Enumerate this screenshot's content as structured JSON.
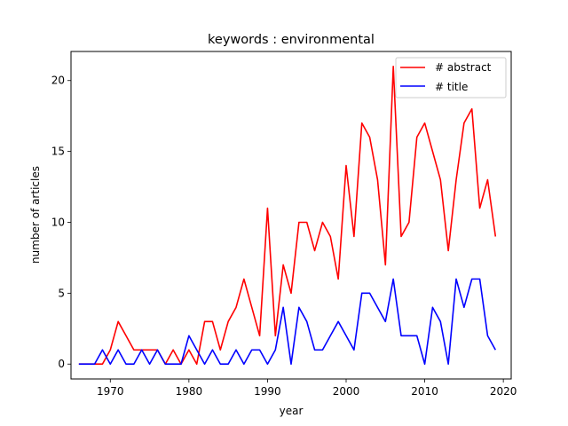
{
  "chart_data": {
    "type": "line",
    "title": "keywords : environmental",
    "xlabel": "year",
    "ylabel": "number of articles",
    "xlim": [
      1965,
      2021
    ],
    "ylim": [
      -1.05,
      22.05
    ],
    "xticks": [
      1970,
      1980,
      1990,
      2000,
      2010,
      2020
    ],
    "yticks": [
      0,
      5,
      10,
      15,
      20
    ],
    "grid": false,
    "legend_position": "top-right",
    "x": [
      1966,
      1967,
      1968,
      1969,
      1970,
      1971,
      1972,
      1973,
      1974,
      1975,
      1976,
      1977,
      1978,
      1979,
      1980,
      1981,
      1982,
      1983,
      1984,
      1985,
      1986,
      1987,
      1988,
      1989,
      1990,
      1991,
      1992,
      1993,
      1994,
      1995,
      1996,
      1997,
      1998,
      1999,
      2000,
      2001,
      2002,
      2003,
      2004,
      2005,
      2006,
      2007,
      2008,
      2009,
      2010,
      2011,
      2012,
      2013,
      2014,
      2015,
      2016,
      2017,
      2018,
      2019
    ],
    "series": [
      {
        "name": "# abstract",
        "color": "#ff0000",
        "values": [
          0,
          0,
          0,
          0,
          1,
          3,
          2,
          1,
          1,
          1,
          1,
          0,
          1,
          0,
          1,
          0,
          3,
          3,
          1,
          3,
          4,
          6,
          4,
          2,
          11,
          2,
          7,
          5,
          10,
          10,
          8,
          10,
          9,
          6,
          14,
          9,
          17,
          16,
          13,
          7,
          21,
          9,
          10,
          16,
          17,
          15,
          13,
          8,
          13,
          17,
          18,
          11,
          13,
          9
        ]
      },
      {
        "name": "# title",
        "color": "#0000ff",
        "values": [
          0,
          0,
          0,
          1,
          0,
          1,
          0,
          0,
          1,
          0,
          1,
          0,
          0,
          0,
          2,
          1,
          0,
          1,
          0,
          0,
          1,
          0,
          1,
          1,
          0,
          1,
          4,
          0,
          4,
          3,
          1,
          1,
          2,
          3,
          2,
          1,
          5,
          5,
          4,
          3,
          6,
          2,
          2,
          2,
          0,
          4,
          3,
          0,
          6,
          4,
          6,
          6,
          2,
          1
        ]
      }
    ]
  }
}
